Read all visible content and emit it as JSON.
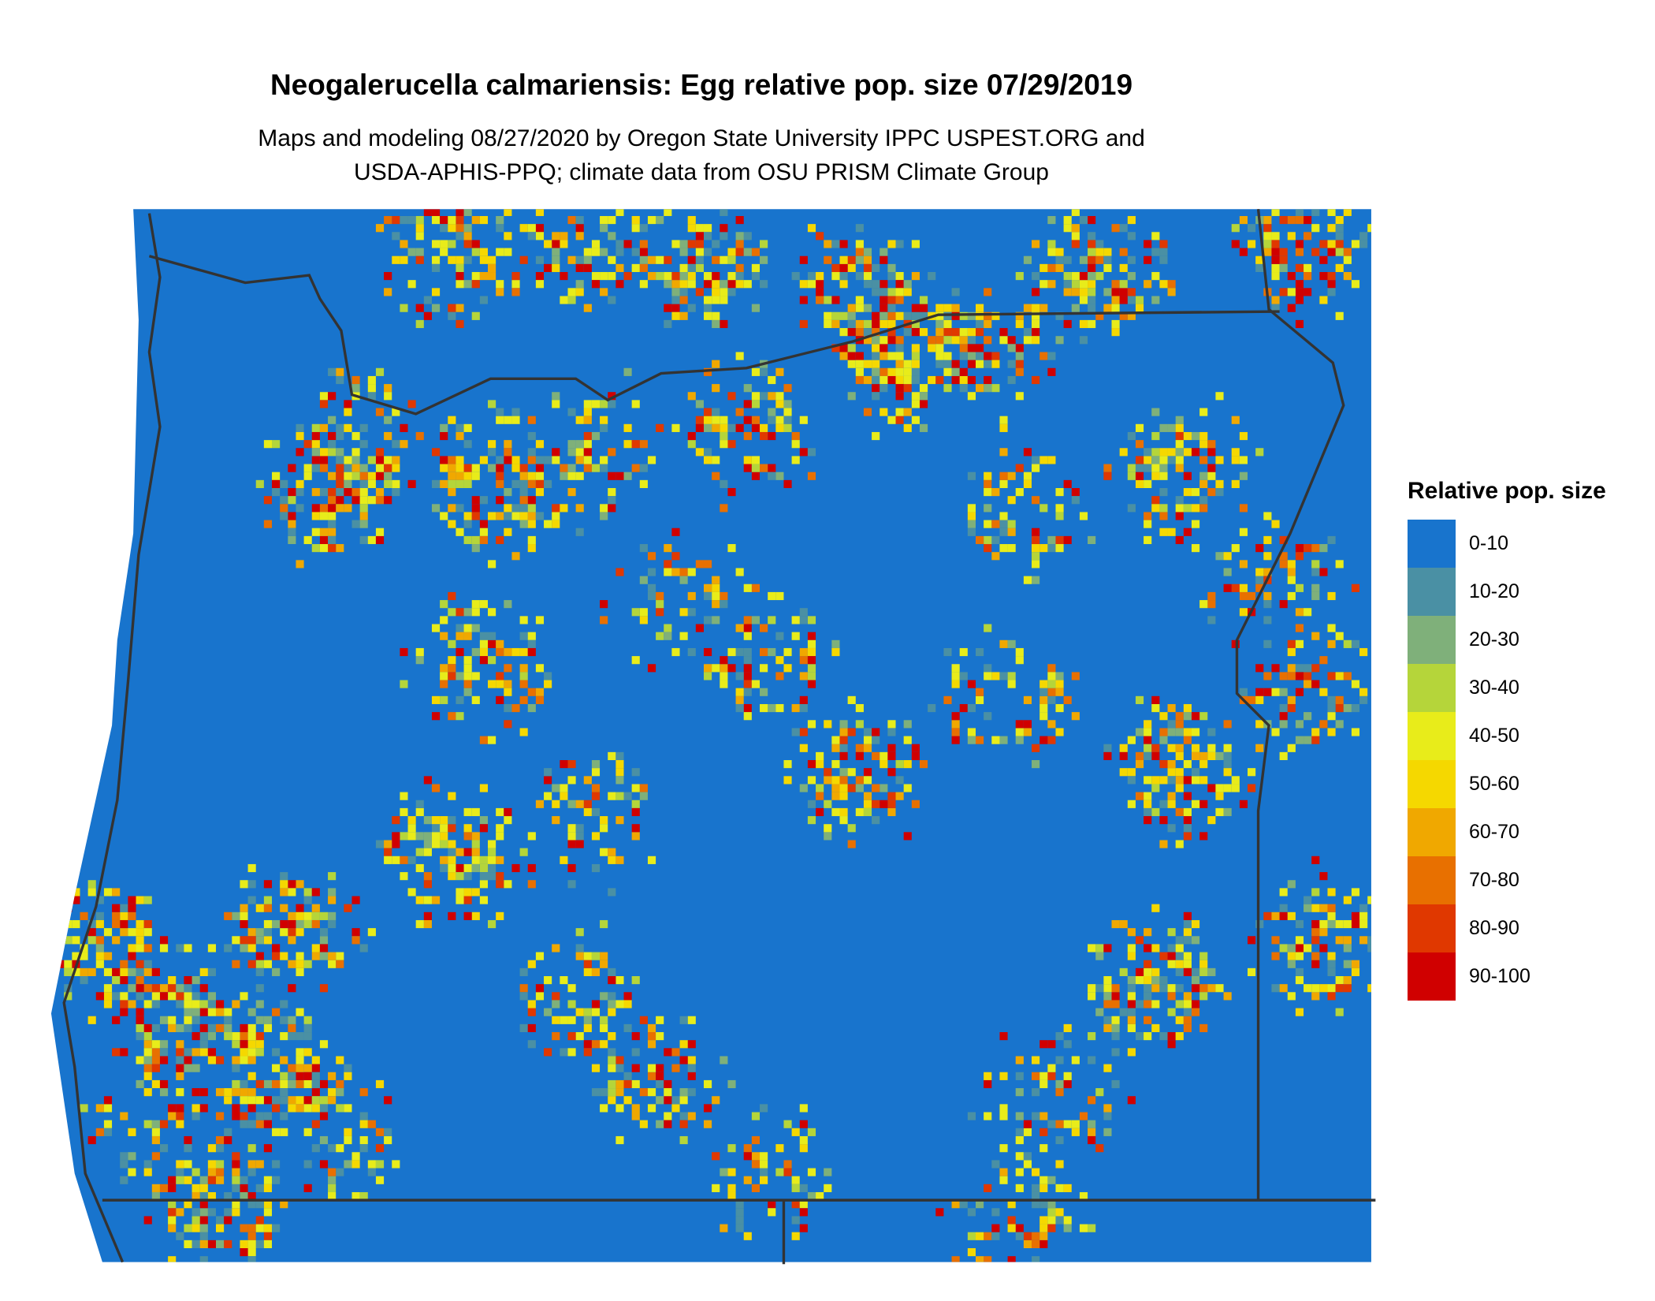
{
  "title": "Neogalerucella calmariensis: Egg relative pop. size 07/29/2019",
  "subtitle": [
    "Maps and modeling 08/27/2020 by Oregon State University IPPC USPEST.ORG and",
    "USDA-APHIS-PPQ; climate data from OSU PRISM Climate Group"
  ],
  "legend": {
    "title": "Relative pop. size",
    "items": [
      {
        "label": "0-10",
        "color": "#1874cd"
      },
      {
        "label": "10-20",
        "color": "#4a90a4"
      },
      {
        "label": "20-30",
        "color": "#7fb07a"
      },
      {
        "label": "30-40",
        "color": "#b5d53a"
      },
      {
        "label": "40-50",
        "color": "#e8ec1a"
      },
      {
        "label": "50-60",
        "color": "#f5d800"
      },
      {
        "label": "60-70",
        "color": "#f0a800"
      },
      {
        "label": "70-80",
        "color": "#e87000"
      },
      {
        "label": "80-90",
        "color": "#e03800"
      },
      {
        "label": "90-100",
        "color": "#d00000"
      }
    ]
  }
}
